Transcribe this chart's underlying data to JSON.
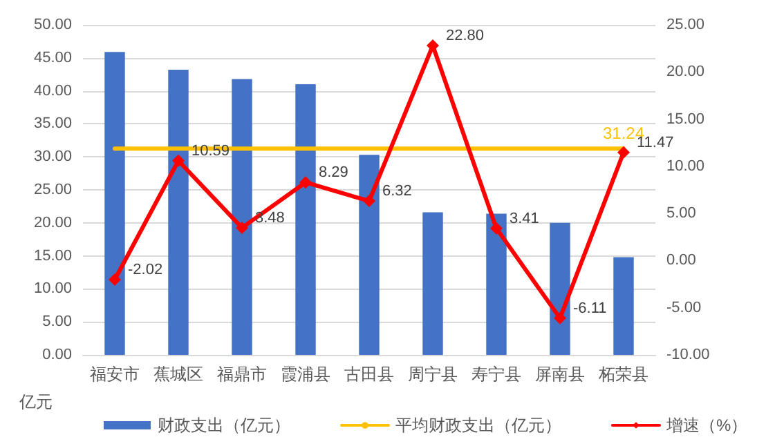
{
  "chart_data": {
    "type": "bar",
    "ylabel": "亿元",
    "categories": [
      "福安市",
      "蕉城区",
      "福鼎市",
      "霞浦县",
      "古田县",
      "周宁县",
      "寿宁县",
      "屏南县",
      "柘荣县"
    ],
    "series": [
      {
        "name": "财政支出（亿元）",
        "color": "#4472c4",
        "values": [
          45.9,
          43.2,
          41.8,
          41.0,
          30.3,
          21.6,
          21.4,
          20.0,
          14.8
        ]
      },
      {
        "name": "平均财政支出（亿元）",
        "type": "line",
        "color": "#ffc000",
        "marker": "none",
        "values": [
          31.24,
          31.24,
          31.24,
          31.24,
          31.24,
          31.24,
          31.24,
          31.24,
          31.24
        ],
        "value_labels": [
          null,
          null,
          null,
          null,
          null,
          null,
          null,
          null,
          "31.24"
        ]
      },
      {
        "name": "增速（%）",
        "type": "line",
        "axis": "y2",
        "color": "#ff0000",
        "marker": "diamond",
        "values": [
          -2.02,
          10.59,
          3.48,
          8.29,
          6.32,
          22.8,
          3.41,
          -6.11,
          11.47
        ],
        "value_labels": [
          "-2.02",
          "10.59",
          "3.48",
          "8.29",
          "6.32",
          "22.80",
          "3.41",
          "-6.11",
          "11.47"
        ]
      }
    ],
    "ylim": [
      0,
      50
    ],
    "yticks": [
      {
        "value": 0,
        "label": "0.00"
      },
      {
        "value": 5,
        "label": "5.00"
      },
      {
        "value": 10,
        "label": "10.00"
      },
      {
        "value": 15,
        "label": "15.00"
      },
      {
        "value": 20,
        "label": "20.00"
      },
      {
        "value": 25,
        "label": "25.00"
      },
      {
        "value": 30,
        "label": "30.00"
      },
      {
        "value": 35,
        "label": "35.00"
      },
      {
        "value": 40,
        "label": "40.00"
      },
      {
        "value": 45,
        "label": "45.00"
      },
      {
        "value": 50,
        "label": "50.00"
      }
    ],
    "y2lim": [
      -10,
      25
    ],
    "y2ticks": [
      {
        "value": -10,
        "label": "-10.00"
      },
      {
        "value": -5,
        "label": "-5.00"
      },
      {
        "value": 0,
        "label": "0.00"
      },
      {
        "value": 5,
        "label": "5.00"
      },
      {
        "value": 10,
        "label": "10.00"
      },
      {
        "value": 15,
        "label": "15.00"
      },
      {
        "value": 20,
        "label": "20.00"
      },
      {
        "value": 25,
        "label": "25.00"
      }
    ],
    "grid": "y",
    "legend": "bottom"
  }
}
